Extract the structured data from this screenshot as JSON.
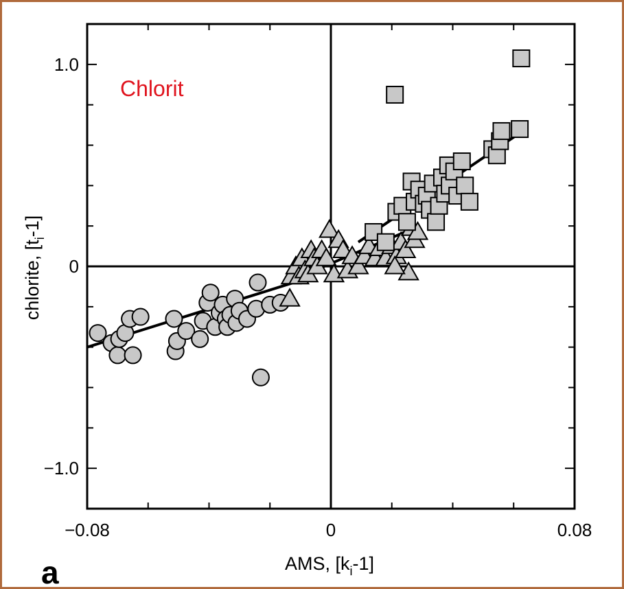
{
  "chart_data": {
    "type": "scatter",
    "title": "",
    "xlabel": "AMS, [k",
    "xlabel_sub": "i",
    "xlabel_tail": "-1]",
    "ylabel": "chlorite, [t",
    "ylabel_sub": "i",
    "ylabel_tail": "-1]",
    "xlim": [
      -0.08,
      0.08
    ],
    "ylim": [
      -1.2,
      1.2
    ],
    "x_ticks": [
      {
        "value": -0.08,
        "label": "−0.08"
      },
      {
        "value": 0,
        "label": "0"
      },
      {
        "value": 0.08,
        "label": "0.08"
      }
    ],
    "y_ticks": [
      {
        "value": 1.0,
        "label": "1.0"
      },
      {
        "value": 0,
        "label": "0"
      },
      {
        "value": -1.0,
        "label": "−1.0"
      }
    ],
    "annotation": {
      "text": "Chlorit",
      "color": "#e0141e"
    },
    "panel_label": "a",
    "marker_fill": "#c8c8c8",
    "series": [
      {
        "marker": "circle",
        "points": [
          [
            -0.0765,
            -0.33
          ],
          [
            -0.072,
            -0.38
          ],
          [
            -0.07,
            -0.44
          ],
          [
            -0.0695,
            -0.36
          ],
          [
            -0.0675,
            -0.33
          ],
          [
            -0.066,
            -0.26
          ],
          [
            -0.065,
            -0.44
          ],
          [
            -0.0625,
            -0.25
          ],
          [
            -0.0515,
            -0.26
          ],
          [
            -0.051,
            -0.42
          ],
          [
            -0.0505,
            -0.37
          ],
          [
            -0.0475,
            -0.32
          ],
          [
            -0.043,
            -0.36
          ],
          [
            -0.042,
            -0.27
          ],
          [
            -0.0405,
            -0.18
          ],
          [
            -0.0395,
            -0.13
          ],
          [
            -0.038,
            -0.3
          ],
          [
            -0.0365,
            -0.23
          ],
          [
            -0.0355,
            -0.19
          ],
          [
            -0.0345,
            -0.26
          ],
          [
            -0.034,
            -0.3
          ],
          [
            -0.033,
            -0.24
          ],
          [
            -0.0315,
            -0.16
          ],
          [
            -0.031,
            -0.28
          ],
          [
            -0.03,
            -0.22
          ],
          [
            -0.0275,
            -0.26
          ],
          [
            -0.0245,
            -0.21
          ],
          [
            -0.024,
            -0.08
          ],
          [
            -0.02,
            -0.19
          ],
          [
            -0.0165,
            -0.18
          ],
          [
            -0.023,
            -0.55
          ]
        ]
      },
      {
        "marker": "triangle",
        "points": [
          [
            -0.0135,
            -0.16
          ],
          [
            -0.013,
            -0.05
          ],
          [
            -0.0115,
            0.0
          ],
          [
            -0.0105,
            -0.05
          ],
          [
            -0.0095,
            0.04
          ],
          [
            -0.0085,
            -0.02
          ],
          [
            -0.0075,
            -0.04
          ],
          [
            -0.0065,
            0.08
          ],
          [
            -0.0055,
            0.04
          ],
          [
            -0.0045,
            0.0
          ],
          [
            -0.003,
            0.08
          ],
          [
            -0.0015,
            0.04
          ],
          [
            -0.0005,
            0.18
          ],
          [
            0.001,
            -0.04
          ],
          [
            0.0025,
            0.13
          ],
          [
            0.004,
            0.08
          ],
          [
            0.0055,
            -0.02
          ],
          [
            0.007,
            0.05
          ],
          [
            0.009,
            0.0
          ],
          [
            0.011,
            0.05
          ],
          [
            0.0125,
            0.1
          ],
          [
            0.0145,
            0.04
          ],
          [
            0.016,
            0.09
          ],
          [
            0.018,
            0.04
          ],
          [
            0.02,
            0.1
          ],
          [
            0.0215,
            0.05
          ],
          [
            0.023,
            0.12
          ],
          [
            0.0245,
            0.08
          ],
          [
            0.0255,
            -0.03
          ],
          [
            0.0265,
            0.19
          ],
          [
            0.0275,
            0.13
          ],
          [
            0.0285,
            0.17
          ],
          [
            0.021,
            0.0
          ]
        ]
      },
      {
        "marker": "square",
        "points": [
          [
            0.014,
            0.17
          ],
          [
            0.018,
            0.12
          ],
          [
            0.021,
            0.85
          ],
          [
            0.0215,
            0.27
          ],
          [
            0.0235,
            0.3
          ],
          [
            0.025,
            0.22
          ],
          [
            0.0265,
            0.42
          ],
          [
            0.0275,
            0.32
          ],
          [
            0.029,
            0.38
          ],
          [
            0.0305,
            0.31
          ],
          [
            0.0315,
            0.35
          ],
          [
            0.0325,
            0.28
          ],
          [
            0.0335,
            0.41
          ],
          [
            0.0345,
            0.22
          ],
          [
            0.0355,
            0.3
          ],
          [
            0.0365,
            0.44
          ],
          [
            0.0375,
            0.36
          ],
          [
            0.0385,
            0.5
          ],
          [
            0.039,
            0.4
          ],
          [
            0.0405,
            0.47
          ],
          [
            0.0415,
            0.35
          ],
          [
            0.043,
            0.52
          ],
          [
            0.044,
            0.4
          ],
          [
            0.0455,
            0.32
          ],
          [
            0.053,
            0.58
          ],
          [
            0.0545,
            0.55
          ],
          [
            0.0555,
            0.62
          ],
          [
            0.056,
            0.67
          ],
          [
            0.062,
            0.68
          ],
          [
            0.0625,
            1.03
          ]
        ]
      }
    ],
    "fit_lines": [
      {
        "points": [
          [
            -0.08,
            -0.4
          ],
          [
            -0.01,
            -0.07
          ]
        ]
      },
      {
        "points": [
          [
            -0.01,
            -0.05
          ],
          [
            0.029,
            0.2
          ]
        ]
      },
      {
        "points": [
          [
            0.009,
            0.12
          ],
          [
            0.062,
            0.66
          ]
        ]
      }
    ]
  }
}
